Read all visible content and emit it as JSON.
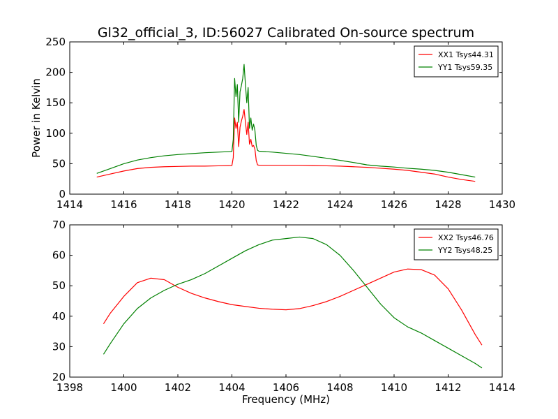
{
  "figure": {
    "title": "Gl32_official_3, ID:56027 Calibrated On-source spectrum",
    "shared_xlabel": "Frequency (MHz)"
  },
  "colors": {
    "red": "#ff0000",
    "green": "#008000",
    "axis": "#000000",
    "background": "#ffffff"
  },
  "chart_data": [
    {
      "type": "line",
      "ylabel": "Power in Kelvin",
      "xlabel": "",
      "xlim": [
        1414,
        1430
      ],
      "ylim": [
        0,
        250
      ],
      "xticks": [
        1414,
        1416,
        1418,
        1420,
        1422,
        1424,
        1426,
        1428,
        1430
      ],
      "yticks": [
        0,
        50,
        100,
        150,
        200,
        250
      ],
      "grid": false,
      "legend_position": "top-right",
      "series": [
        {
          "name": "XX1 Tsys44.31",
          "color": "#ff0000",
          "x": [
            1415.0,
            1415.5,
            1416.0,
            1416.5,
            1417.0,
            1417.5,
            1418.0,
            1418.5,
            1419.0,
            1419.5,
            1420.0,
            1420.05,
            1420.1,
            1420.15,
            1420.2,
            1420.25,
            1420.3,
            1420.35,
            1420.4,
            1420.45,
            1420.5,
            1420.55,
            1420.6,
            1420.65,
            1420.7,
            1420.75,
            1420.8,
            1420.85,
            1420.9,
            1420.95,
            1421.0,
            1421.5,
            1422.0,
            1422.5,
            1423.0,
            1423.5,
            1424.0,
            1424.5,
            1425.0,
            1425.5,
            1426.0,
            1426.5,
            1427.0,
            1427.5,
            1428.0,
            1428.5,
            1429.0
          ],
          "y": [
            28,
            33,
            38,
            42,
            44,
            45,
            45.5,
            46,
            46,
            46.5,
            47,
            60,
            125,
            108,
            118,
            78,
            110,
            120,
            128,
            139,
            118,
            98,
            118,
            82,
            90,
            78,
            80,
            74,
            55,
            48,
            47.5,
            47.5,
            47.5,
            47.5,
            47,
            46.5,
            46,
            45,
            44,
            42.5,
            41,
            39,
            36,
            33,
            28,
            24,
            21
          ]
        },
        {
          "name": "YY1 Tsys59.35",
          "color": "#008000",
          "x": [
            1415.0,
            1415.5,
            1416.0,
            1416.5,
            1417.0,
            1417.5,
            1418.0,
            1418.5,
            1419.0,
            1419.5,
            1420.0,
            1420.05,
            1420.1,
            1420.15,
            1420.2,
            1420.25,
            1420.3,
            1420.35,
            1420.4,
            1420.45,
            1420.5,
            1420.55,
            1420.6,
            1420.65,
            1420.7,
            1420.75,
            1420.8,
            1420.85,
            1420.9,
            1420.95,
            1421.0,
            1421.5,
            1422.0,
            1422.5,
            1423.0,
            1423.5,
            1424.0,
            1424.5,
            1425.0,
            1425.5,
            1426.0,
            1426.5,
            1427.0,
            1427.5,
            1428.0,
            1428.5,
            1429.0
          ],
          "y": [
            34,
            42,
            50,
            56,
            60,
            63,
            65,
            66.5,
            68,
            69,
            70,
            90,
            190,
            160,
            180,
            118,
            168,
            178,
            190,
            213,
            180,
            150,
            175,
            108,
            125,
            105,
            115,
            105,
            80,
            72,
            70.5,
            69,
            67,
            65,
            62,
            59,
            55.5,
            52,
            48,
            46,
            44.5,
            42.5,
            41,
            39,
            36,
            32,
            28
          ]
        }
      ]
    },
    {
      "type": "line",
      "ylabel": "",
      "xlabel": "Frequency (MHz)",
      "xlim": [
        1398,
        1414
      ],
      "ylim": [
        20,
        70
      ],
      "xticks": [
        1398,
        1400,
        1402,
        1404,
        1406,
        1408,
        1410,
        1412,
        1414
      ],
      "yticks": [
        20,
        30,
        40,
        50,
        60,
        70
      ],
      "grid": false,
      "legend_position": "top-right",
      "series": [
        {
          "name": "XX2 Tsys46.76",
          "color": "#ff0000",
          "x": [
            1399.25,
            1399.5,
            1400.0,
            1400.5,
            1401.0,
            1401.5,
            1402.0,
            1402.5,
            1403.0,
            1403.5,
            1404.0,
            1404.5,
            1405.0,
            1405.5,
            1406.0,
            1406.5,
            1407.0,
            1407.5,
            1408.0,
            1408.5,
            1409.0,
            1409.5,
            1410.0,
            1410.5,
            1411.0,
            1411.5,
            1412.0,
            1412.5,
            1413.0,
            1413.25
          ],
          "y": [
            37.5,
            41,
            46.5,
            51,
            52.5,
            52,
            49.5,
            47.5,
            46,
            44.8,
            43.8,
            43.2,
            42.6,
            42.3,
            42.1,
            42.5,
            43.5,
            44.8,
            46.5,
            48.5,
            50.5,
            52.5,
            54.5,
            55.5,
            55.3,
            53.5,
            49,
            42,
            34,
            30.5
          ]
        },
        {
          "name": "YY2 Tsys48.25",
          "color": "#008000",
          "x": [
            1399.25,
            1399.5,
            1400.0,
            1400.5,
            1401.0,
            1401.5,
            1402.0,
            1402.5,
            1403.0,
            1403.5,
            1404.0,
            1404.5,
            1405.0,
            1405.5,
            1406.0,
            1406.5,
            1407.0,
            1407.5,
            1408.0,
            1408.5,
            1409.0,
            1409.5,
            1410.0,
            1410.5,
            1411.0,
            1411.5,
            1412.0,
            1412.5,
            1413.0,
            1413.25
          ],
          "y": [
            27.5,
            31,
            37.5,
            42.5,
            46,
            48.5,
            50.5,
            52,
            54,
            56.5,
            59,
            61.5,
            63.5,
            65,
            65.5,
            66,
            65.5,
            63.5,
            60,
            55,
            49.5,
            44,
            39.5,
            36.5,
            34.5,
            32,
            29.5,
            27,
            24.5,
            23
          ]
        }
      ]
    }
  ]
}
